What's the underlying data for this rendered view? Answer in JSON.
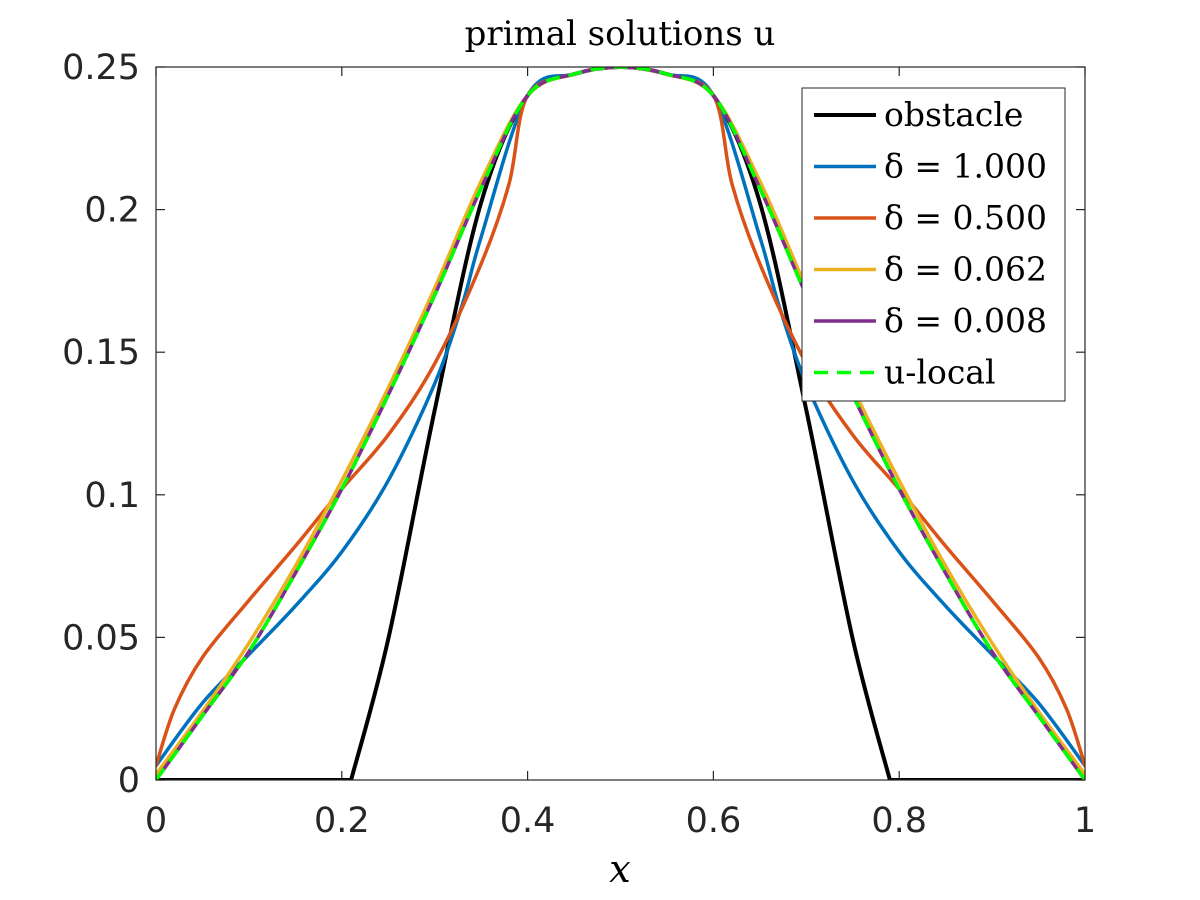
{
  "chart_data": {
    "type": "line",
    "title": "primal solutions u",
    "xlabel": "x",
    "ylabel": "",
    "xlim": [
      0,
      1
    ],
    "ylim": [
      0,
      0.25
    ],
    "xticks": [
      "0",
      "0.2",
      "0.4",
      "0.6",
      "0.8",
      "1"
    ],
    "yticks": [
      "0",
      "0.05",
      "0.1",
      "0.15",
      "0.2",
      "0.25"
    ],
    "grid": false,
    "legend_position": "top-right",
    "series": [
      {
        "name": "obstacle",
        "color": "#000000",
        "dash": "solid",
        "x": [
          0,
          0.21,
          0.25,
          0.3,
          0.35,
          0.4,
          0.45,
          0.5,
          0.55,
          0.6,
          0.65,
          0.7,
          0.75,
          0.79,
          1
        ],
        "y": [
          0,
          0,
          0.0494,
          0.1297,
          0.2025,
          0.24,
          0.2475,
          0.25,
          0.2475,
          0.24,
          0.2025,
          0.1297,
          0.0494,
          0,
          0
        ]
      },
      {
        "name": "δ = 1.000",
        "color": "#0072BD",
        "dash": "solid",
        "x": [
          0,
          0.05,
          0.1,
          0.15,
          0.2,
          0.25,
          0.3,
          0.33,
          0.35,
          0.4,
          0.45,
          0.5,
          0.55,
          0.6,
          0.65,
          0.67,
          0.7,
          0.75,
          0.8,
          0.85,
          0.9,
          0.95,
          1
        ],
        "y": [
          0.005,
          0.027,
          0.044,
          0.061,
          0.08,
          0.105,
          0.139,
          0.167,
          0.1904,
          0.24,
          0.2475,
          0.25,
          0.2475,
          0.24,
          0.1904,
          0.167,
          0.139,
          0.105,
          0.08,
          0.061,
          0.044,
          0.027,
          0.005
        ]
      },
      {
        "name": "δ = 0.500",
        "color": "#D95319",
        "dash": "solid",
        "x": [
          0,
          0.02,
          0.05,
          0.1,
          0.15,
          0.2,
          0.25,
          0.3,
          0.35,
          0.38,
          0.4,
          0.45,
          0.5,
          0.55,
          0.6,
          0.62,
          0.65,
          0.7,
          0.75,
          0.8,
          0.85,
          0.9,
          0.95,
          0.98,
          1
        ],
        "y": [
          0.005,
          0.025,
          0.043,
          0.063,
          0.082,
          0.102,
          0.121,
          0.146,
          0.181,
          0.209,
          0.24,
          0.2475,
          0.25,
          0.2475,
          0.24,
          0.209,
          0.181,
          0.146,
          0.121,
          0.102,
          0.082,
          0.063,
          0.043,
          0.025,
          0.005
        ]
      },
      {
        "name": "δ = 0.062",
        "color": "#EDB120",
        "dash": "solid",
        "x": [
          0,
          0.05,
          0.1,
          0.15,
          0.2,
          0.25,
          0.3,
          0.35,
          0.4,
          0.45,
          0.5,
          0.55,
          0.6,
          0.65,
          0.7,
          0.75,
          0.8,
          0.85,
          0.9,
          0.95,
          1
        ],
        "y": [
          0.002,
          0.024,
          0.048,
          0.075,
          0.105,
          0.1375,
          0.1725,
          0.21,
          0.24,
          0.2475,
          0.25,
          0.2475,
          0.24,
          0.21,
          0.1725,
          0.1375,
          0.105,
          0.075,
          0.048,
          0.024,
          0.002
        ]
      },
      {
        "name": "δ = 0.008",
        "color": "#7E2F8E",
        "dash": "solid",
        "x": [
          0,
          0.05,
          0.1,
          0.15,
          0.2,
          0.25,
          0.3,
          0.35,
          0.4,
          0.45,
          0.5,
          0.55,
          0.6,
          0.65,
          0.7,
          0.75,
          0.8,
          0.85,
          0.9,
          0.95,
          1
        ],
        "y": [
          0,
          0.0225,
          0.045,
          0.0725,
          0.102,
          0.135,
          0.17,
          0.2075,
          0.24,
          0.2475,
          0.25,
          0.2475,
          0.24,
          0.2075,
          0.17,
          0.135,
          0.102,
          0.0725,
          0.045,
          0.0225,
          0
        ]
      },
      {
        "name": "u-local",
        "color": "#00FF00",
        "dash": "dashed",
        "x": [
          0,
          0.05,
          0.1,
          0.15,
          0.2,
          0.25,
          0.3,
          0.35,
          0.4,
          0.45,
          0.5,
          0.55,
          0.6,
          0.65,
          0.7,
          0.75,
          0.8,
          0.85,
          0.9,
          0.95,
          1
        ],
        "y": [
          0,
          0.0225,
          0.045,
          0.0725,
          0.102,
          0.135,
          0.17,
          0.2075,
          0.24,
          0.2475,
          0.25,
          0.2475,
          0.24,
          0.2075,
          0.17,
          0.135,
          0.102,
          0.0725,
          0.045,
          0.0225,
          0
        ]
      }
    ]
  }
}
